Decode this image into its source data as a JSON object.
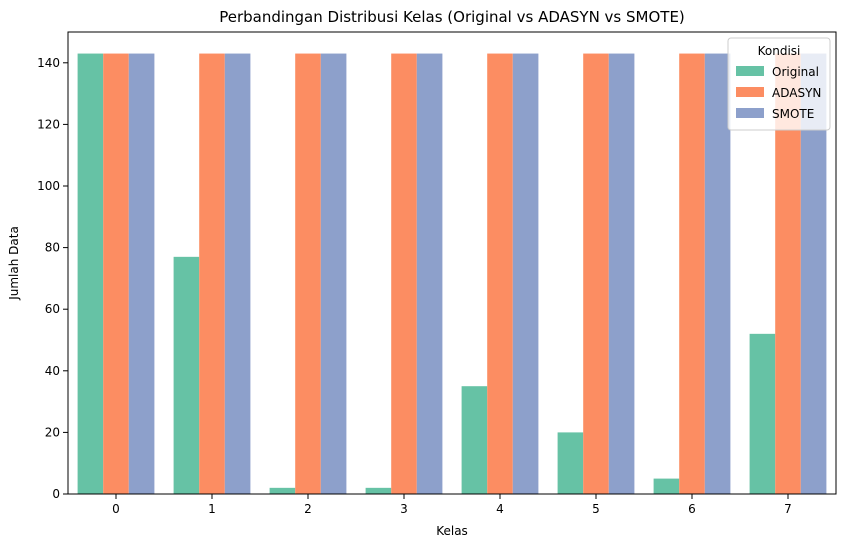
{
  "chart_data": {
    "type": "bar",
    "title": "Perbandingan Distribusi Kelas (Original vs ADASYN vs SMOTE)",
    "xlabel": "Kelas",
    "ylabel": "Jumlah Data",
    "categories": [
      "0",
      "1",
      "2",
      "3",
      "4",
      "5",
      "6",
      "7"
    ],
    "series": [
      {
        "name": "Original",
        "color": "#66c2a5",
        "values": [
          143,
          77,
          2,
          2,
          35,
          20,
          5,
          52
        ]
      },
      {
        "name": "ADASYN",
        "color": "#fc8d62",
        "values": [
          143,
          143,
          143,
          143,
          143,
          143,
          143,
          143
        ]
      },
      {
        "name": "SMOTE",
        "color": "#8da0cb",
        "values": [
          143,
          143,
          143,
          143,
          143,
          143,
          143,
          143
        ]
      }
    ],
    "ylim": [
      0,
      150
    ],
    "yticks": [
      0,
      20,
      40,
      60,
      80,
      100,
      120,
      140
    ],
    "grid": false,
    "legend": {
      "title": "Kondisi",
      "position": "top-right"
    }
  }
}
